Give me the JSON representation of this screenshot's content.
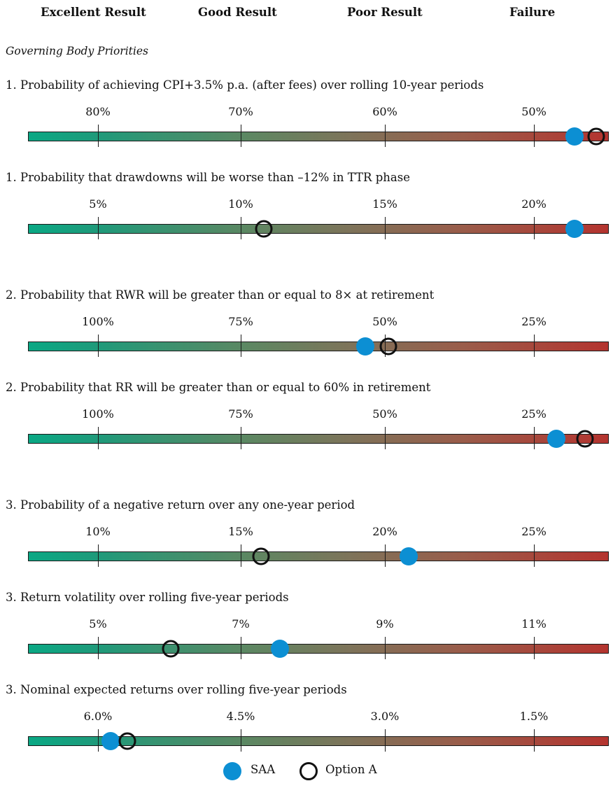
{
  "header": {
    "categories": [
      "Excellent Result",
      "Good Result",
      "Poor Result",
      "Failure"
    ]
  },
  "subtitle": "Governing Body Priorities",
  "chart_data": {
    "type": "scale",
    "legend": [
      {
        "name": "SAA",
        "marker": "filled-circle",
        "color": "#0c8fd3"
      },
      {
        "name": "Option A",
        "marker": "open-circle",
        "color": "#111111"
      }
    ],
    "legend_position": "bottom-center",
    "gradient_colors": [
      "#0aa884",
      "#b4342f"
    ],
    "metrics": [
      {
        "title": "1. Probability of achieving CPI+3.5% p.a. (after fees) over rolling 10-year periods",
        "ticks": [
          {
            "value": 80,
            "label": "80%"
          },
          {
            "value": 70,
            "label": "70%"
          },
          {
            "value": 60,
            "label": "60%"
          },
          {
            "value": 50,
            "label": "50%"
          }
        ],
        "saa": 47.2,
        "option_a": 45.7
      },
      {
        "title": "1. Probability that drawdowns will be worse than –12% in TTR phase",
        "ticks": [
          {
            "value": 5,
            "label": "5%"
          },
          {
            "value": 10,
            "label": "10%"
          },
          {
            "value": 15,
            "label": "15%"
          },
          {
            "value": 20,
            "label": "20%"
          }
        ],
        "saa": 21.4,
        "option_a": 10.7
      },
      {
        "title": "2. Probability that RWR will be greater than or equal to 8× at retirement",
        "ticks": [
          {
            "value": 100,
            "label": "100%"
          },
          {
            "value": 75,
            "label": "75%"
          },
          {
            "value": 50,
            "label": "50%"
          },
          {
            "value": 25,
            "label": "25%"
          }
        ],
        "saa": 54.0,
        "option_a": 50.0
      },
      {
        "title": "2. Probability that RR will be greater than or equal to 60% in retirement",
        "ticks": [
          {
            "value": 100,
            "label": "100%"
          },
          {
            "value": 75,
            "label": "75%"
          },
          {
            "value": 50,
            "label": "50%"
          },
          {
            "value": 25,
            "label": "25%"
          }
        ],
        "saa": 21.2,
        "option_a": 16.2
      },
      {
        "title": "3. Probability of a negative return over any one-year period",
        "ticks": [
          {
            "value": 10,
            "label": "10%"
          },
          {
            "value": 15,
            "label": "15%"
          },
          {
            "value": 20,
            "label": "20%"
          },
          {
            "value": 25,
            "label": "25%"
          }
        ],
        "saa": 20.7,
        "option_a": 15.6
      },
      {
        "title": "3. Return volatility over rolling five-year periods",
        "ticks": [
          {
            "value": 5,
            "label": "5%"
          },
          {
            "value": 7,
            "label": "7%"
          },
          {
            "value": 9,
            "label": "9%"
          },
          {
            "value": 11,
            "label": "11%"
          }
        ],
        "saa": 7.5,
        "option_a": 6.0
      },
      {
        "title": "3. Nominal expected returns over rolling five-year periods",
        "ticks": [
          {
            "value": 6.0,
            "label": "6.0%"
          },
          {
            "value": 4.5,
            "label": "4.5%"
          },
          {
            "value": 3.0,
            "label": "3.0%"
          },
          {
            "value": 1.5,
            "label": "1.5%"
          }
        ],
        "saa": 5.87,
        "option_a": 5.7
      }
    ]
  }
}
